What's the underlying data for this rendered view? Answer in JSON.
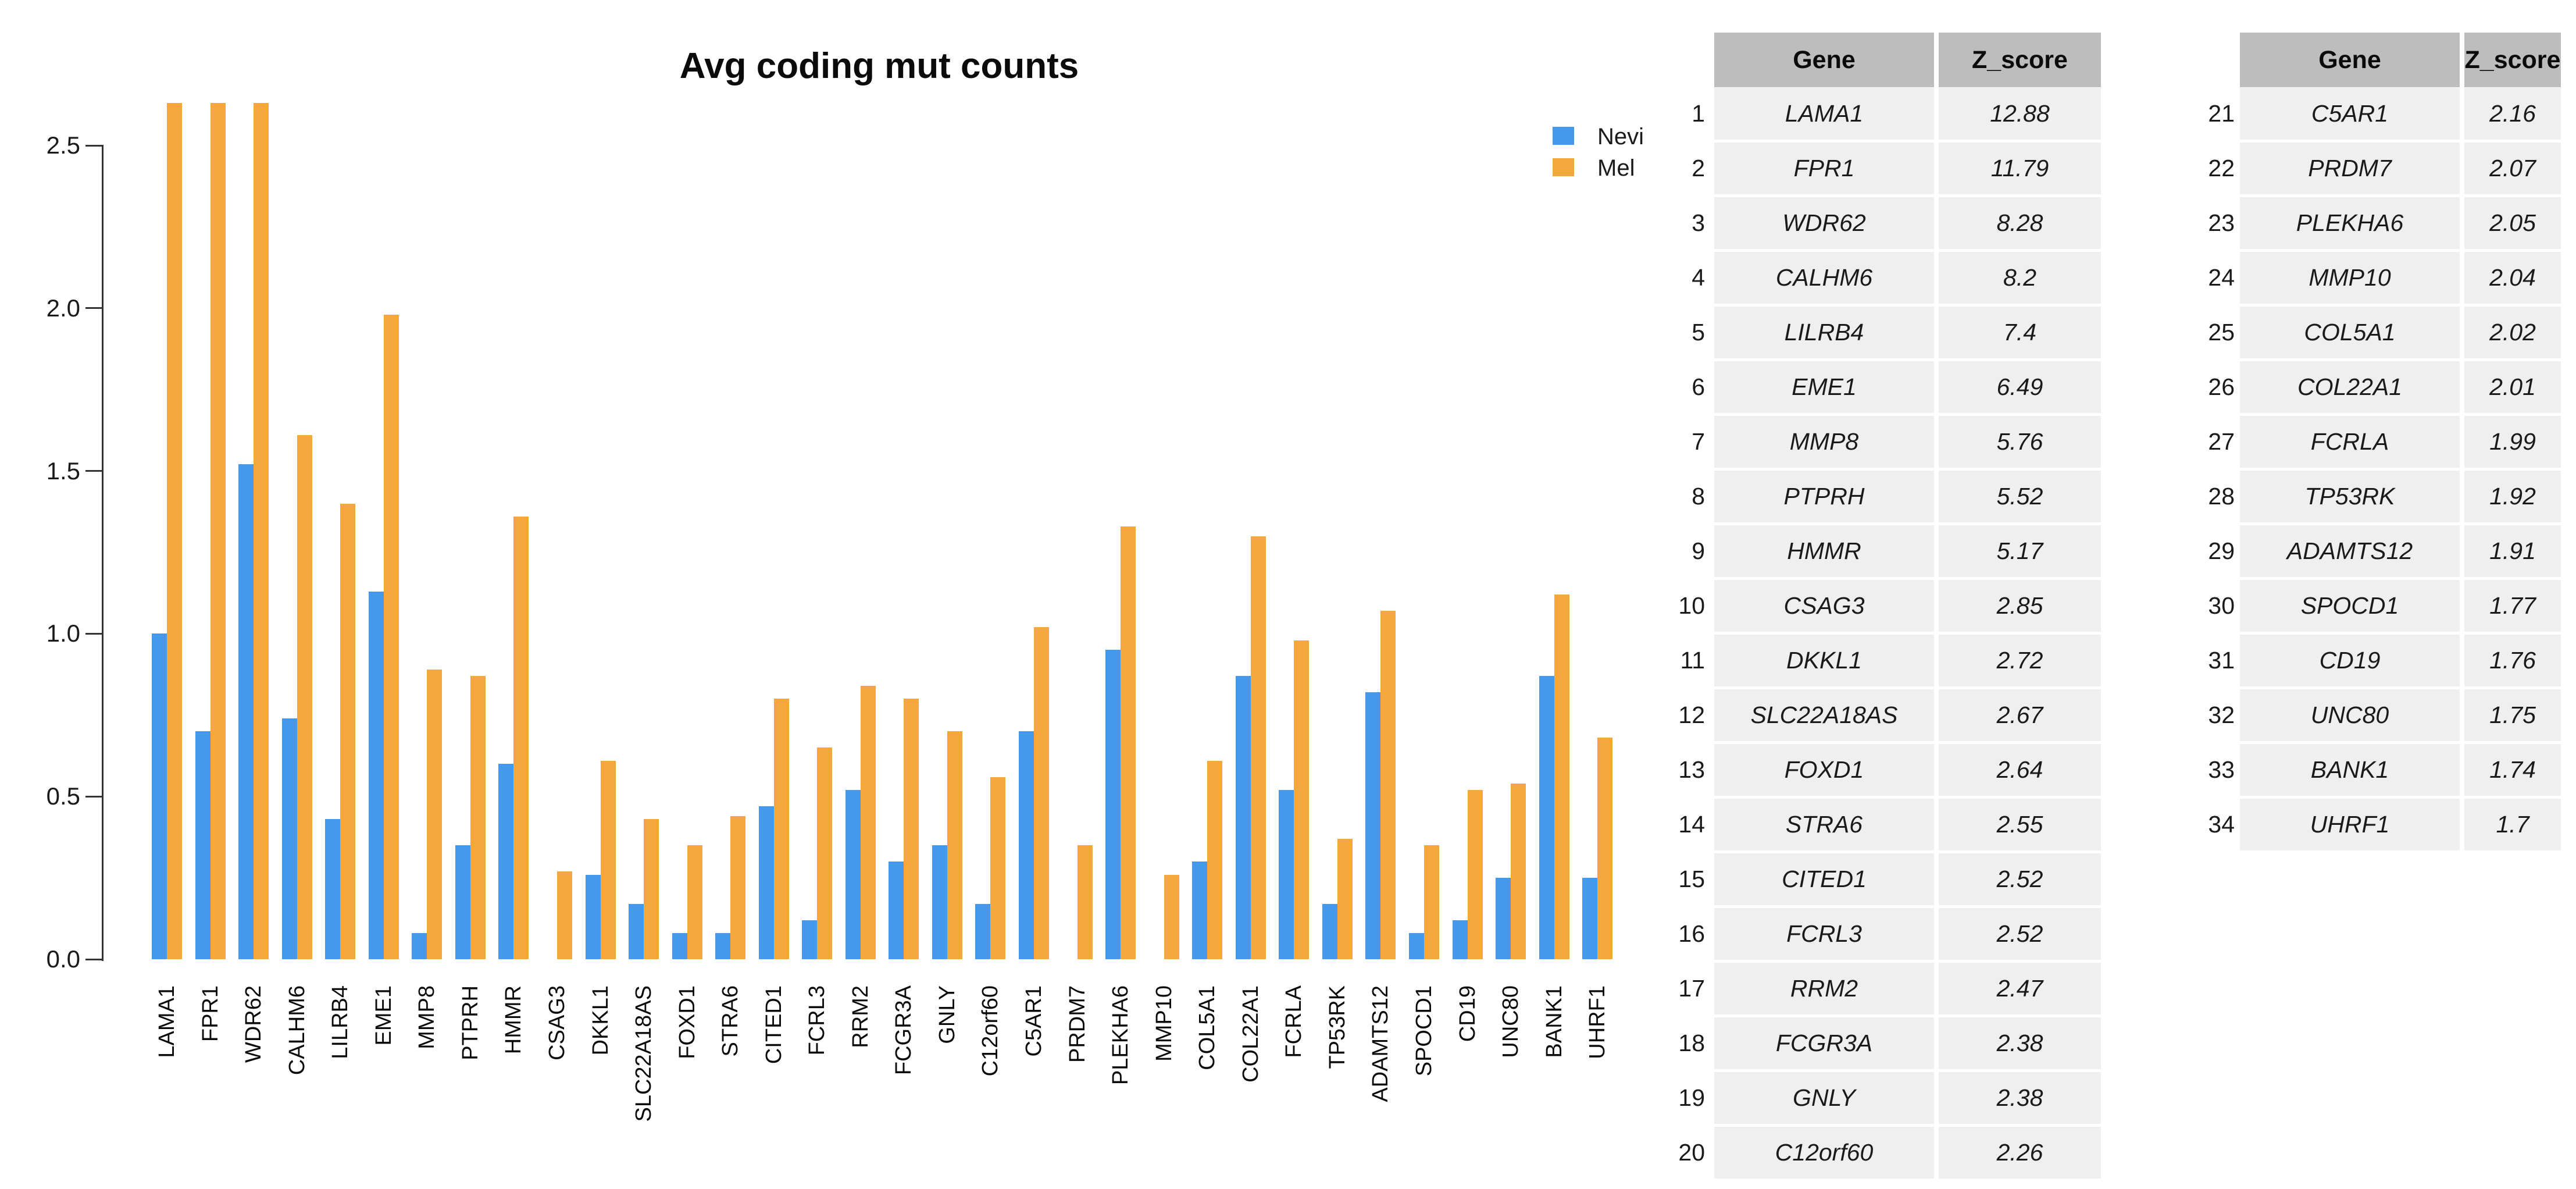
{
  "title": "Avg coding mut counts",
  "legend": {
    "items": [
      {
        "label": "Nevi",
        "color": "#4598EC"
      },
      {
        "label": "Mel",
        "color": "#F4A73D"
      }
    ]
  },
  "chart_data": {
    "type": "bar",
    "title": "Avg coding mut counts",
    "xlabel": "",
    "ylabel": "",
    "ylim": [
      0,
      2.5
    ],
    "ytick_labels": [
      "0.0",
      "0.5",
      "1.0",
      "1.5",
      "2.0",
      "2.5"
    ],
    "grid": false,
    "legend_position": "top-right",
    "categories": [
      "LAMA1",
      "FPR1",
      "WDR62",
      "CALHM6",
      "LILRB4",
      "EME1",
      "MMP8",
      "PTPRH",
      "HMMR",
      "CSAG3",
      "DKKL1",
      "SLC22A18AS",
      "FOXD1",
      "STRA6",
      "CITED1",
      "FCRL3",
      "RRM2",
      "FCGR3A",
      "GNLY",
      "C12orf60",
      "C5AR1",
      "PRDM7",
      "PLEKHA6",
      "MMP10",
      "COL5A1",
      "COL22A1",
      "FCRLA",
      "TP53RK",
      "ADAMTS12",
      "SPOCD1",
      "CD19",
      "UNC80",
      "BANK1",
      "UHRF1"
    ],
    "series": [
      {
        "name": "Nevi",
        "color": "#4598EC",
        "values": [
          1.0,
          0.7,
          1.52,
          0.74,
          0.43,
          1.13,
          0.08,
          0.35,
          0.6,
          0,
          0.26,
          0.17,
          0.08,
          0.08,
          0.47,
          0.12,
          0.52,
          0.3,
          0.35,
          0.17,
          0.7,
          0,
          0.95,
          0,
          0.3,
          0.87,
          0.52,
          0.17,
          0.82,
          0.08,
          0.12,
          0.25,
          0.87,
          0.25
        ]
      },
      {
        "name": "Mel",
        "color": "#F4A73D",
        "values": [
          2.63,
          2.63,
          2.63,
          1.61,
          1.4,
          1.98,
          0.89,
          0.87,
          1.36,
          0.27,
          0.61,
          0.43,
          0.35,
          0.44,
          0.8,
          0.65,
          0.84,
          0.8,
          0.7,
          0.56,
          1.02,
          0.35,
          1.33,
          0.26,
          0.61,
          1.3,
          0.98,
          0.37,
          1.07,
          0.35,
          0.52,
          0.54,
          1.12,
          0.68
        ]
      }
    ],
    "note": "Mel bars for LAMA1, FPR1 and WDR62 are clipped at the top of the plot area (drawn to ~2.63, above the 2.5 axis maximum)"
  },
  "tables": [
    {
      "columns": [
        "Gene",
        "Z_score"
      ],
      "start_index": 1,
      "rows": [
        [
          "LAMA1",
          "12.88"
        ],
        [
          "FPR1",
          "11.79"
        ],
        [
          "WDR62",
          "8.28"
        ],
        [
          "CALHM6",
          "8.2"
        ],
        [
          "LILRB4",
          "7.4"
        ],
        [
          "EME1",
          "6.49"
        ],
        [
          "MMP8",
          "5.76"
        ],
        [
          "PTPRH",
          "5.52"
        ],
        [
          "HMMR",
          "5.17"
        ],
        [
          "CSAG3",
          "2.85"
        ],
        [
          "DKKL1",
          "2.72"
        ],
        [
          "SLC22A18AS",
          "2.67"
        ],
        [
          "FOXD1",
          "2.64"
        ],
        [
          "STRA6",
          "2.55"
        ],
        [
          "CITED1",
          "2.52"
        ],
        [
          "FCRL3",
          "2.52"
        ],
        [
          "RRM2",
          "2.47"
        ],
        [
          "FCGR3A",
          "2.38"
        ],
        [
          "GNLY",
          "2.38"
        ],
        [
          "C12orf60",
          "2.26"
        ]
      ]
    },
    {
      "columns": [
        "Gene",
        "Z_score"
      ],
      "start_index": 21,
      "rows": [
        [
          "C5AR1",
          "2.16"
        ],
        [
          "PRDM7",
          "2.07"
        ],
        [
          "PLEKHA6",
          "2.05"
        ],
        [
          "MMP10",
          "2.04"
        ],
        [
          "COL5A1",
          "2.02"
        ],
        [
          "COL22A1",
          "2.01"
        ],
        [
          "FCRLA",
          "1.99"
        ],
        [
          "TP53RK",
          "1.92"
        ],
        [
          "ADAMTS12",
          "1.91"
        ],
        [
          "SPOCD1",
          "1.77"
        ],
        [
          "CD19",
          "1.76"
        ],
        [
          "UNC80",
          "1.75"
        ],
        [
          "BANK1",
          "1.74"
        ],
        [
          "UHRF1",
          "1.7"
        ]
      ]
    }
  ]
}
